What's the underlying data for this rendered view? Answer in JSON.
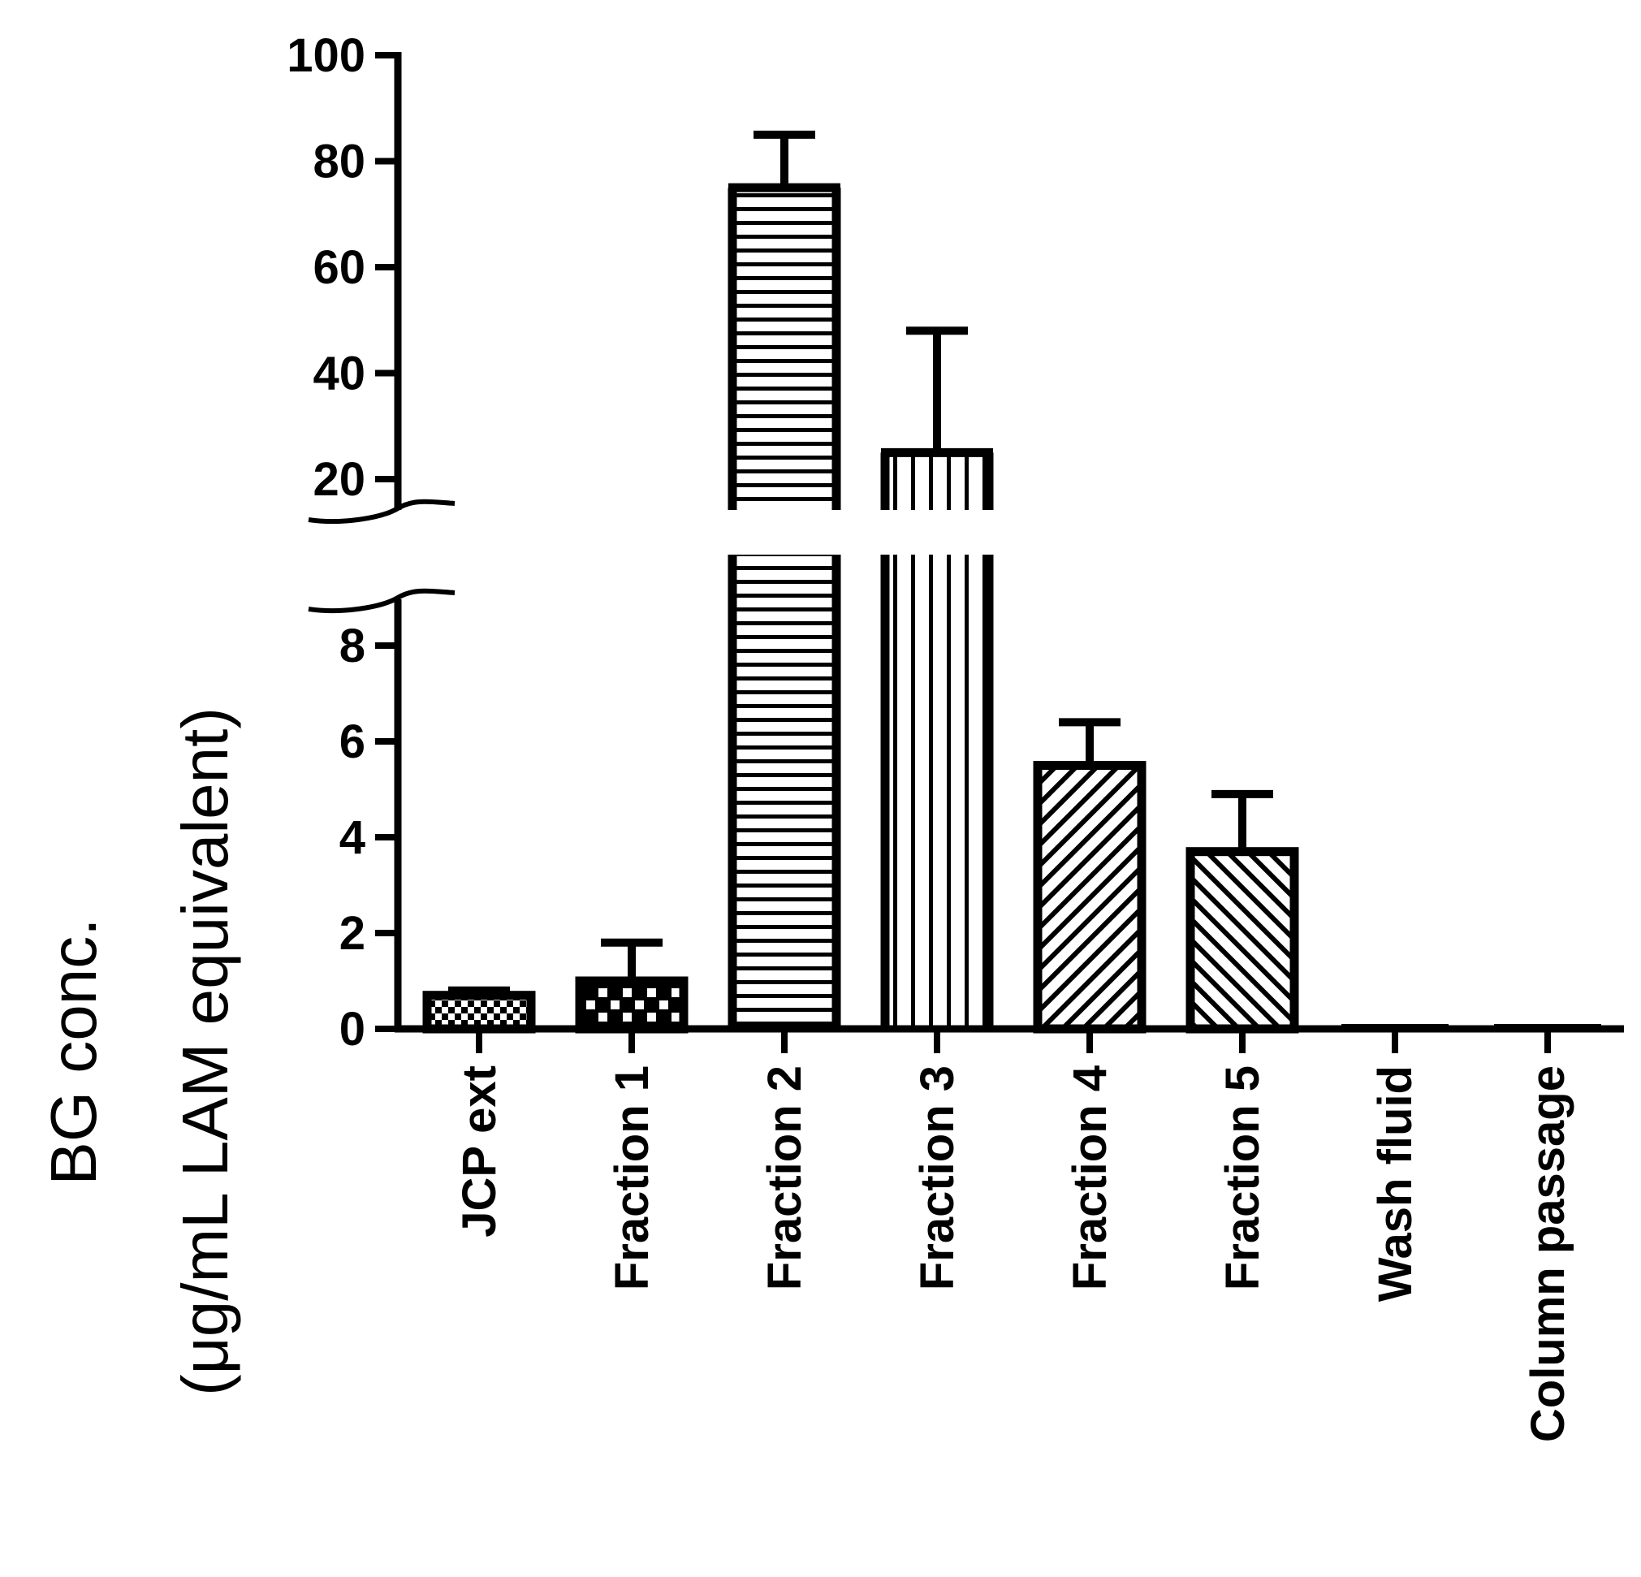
{
  "chart_data": {
    "type": "bar",
    "ylabel_line1": "BG conc.",
    "ylabel_line2": "(μg/mL LAM equivalent)",
    "categories": [
      "JCP ext",
      "Fraction 1",
      "Fraction 2",
      "Fraction 3",
      "Fraction 4",
      "Fraction 5",
      "Wash fluid",
      "Column passage"
    ],
    "values": [
      0.7,
      1.0,
      75,
      25,
      5.5,
      3.7,
      0.05,
      0.05
    ],
    "error": [
      0.1,
      0.8,
      10,
      23,
      0.9,
      1.2,
      0,
      0.03
    ],
    "patterns": [
      "checker-fine",
      "checker-coarse",
      "horizontal",
      "vertical",
      "diag-up",
      "diag-down",
      "solid",
      "solid"
    ],
    "y_axis_broken": true,
    "ylim_lower": [
      0,
      9
    ],
    "ylim_upper": [
      15,
      100
    ],
    "ticks_lower": [
      "0",
      "2",
      "4",
      "6",
      "8"
    ],
    "ticks_upper": [
      "20",
      "40",
      "60",
      "80",
      "100"
    ],
    "tick_values_lower": [
      0,
      2,
      4,
      6,
      8
    ],
    "tick_values_upper": [
      20,
      40,
      60,
      80,
      100
    ],
    "grid": false,
    "legend": "none"
  }
}
